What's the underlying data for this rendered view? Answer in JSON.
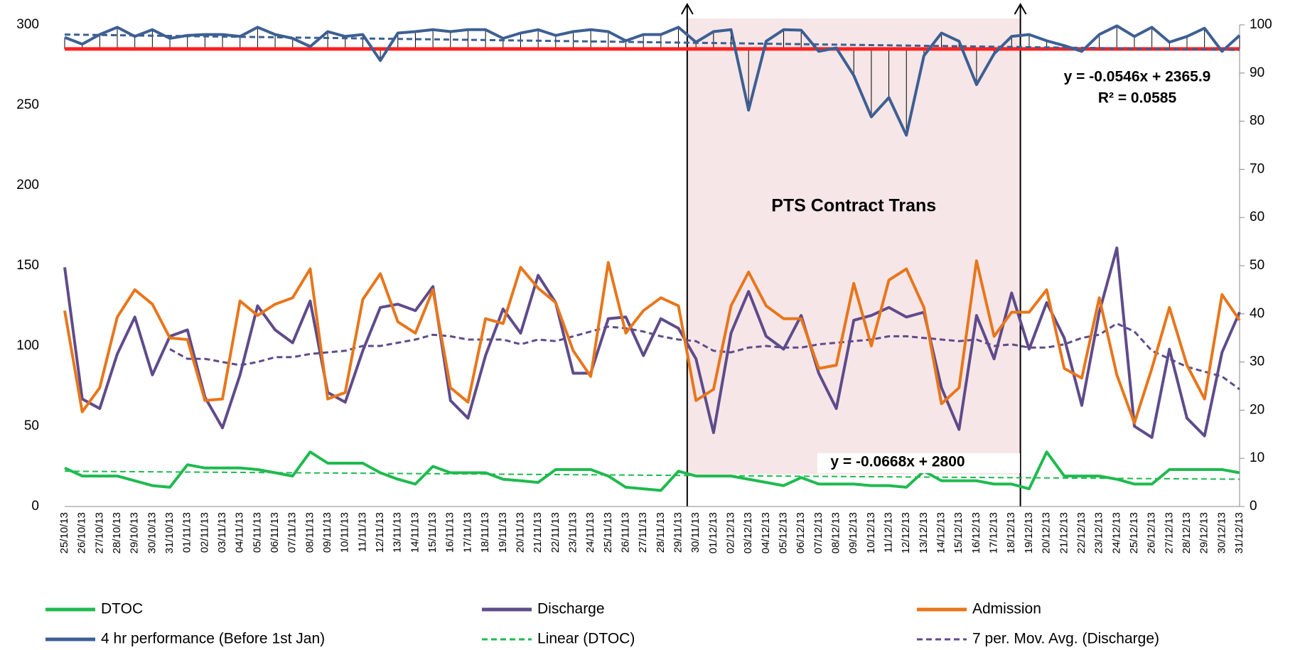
{
  "chart_data": {
    "type": "line",
    "categories": [
      "25/10/13",
      "26/10/13",
      "27/10/13",
      "28/10/13",
      "29/10/13",
      "30/10/13",
      "31/10/13",
      "01/11/13",
      "02/11/13",
      "03/11/13",
      "04/11/13",
      "05/11/13",
      "06/11/13",
      "07/11/13",
      "08/11/13",
      "09/11/13",
      "10/11/13",
      "11/11/13",
      "12/11/13",
      "13/11/13",
      "14/11/13",
      "15/11/13",
      "16/11/13",
      "17/11/13",
      "18/11/13",
      "19/11/13",
      "20/11/13",
      "21/11/13",
      "22/11/13",
      "23/11/13",
      "24/11/13",
      "25/11/13",
      "26/11/13",
      "27/11/13",
      "28/11/13",
      "29/11/13",
      "30/11/13",
      "01/12/13",
      "02/12/13",
      "03/12/13",
      "04/12/13",
      "05/12/13",
      "06/12/13",
      "07/12/13",
      "08/12/13",
      "09/12/13",
      "10/12/13",
      "11/12/13",
      "12/12/13",
      "13/12/13",
      "14/12/13",
      "15/12/13",
      "16/12/13",
      "17/12/13",
      "18/12/13",
      "19/12/13",
      "20/12/13",
      "21/12/13",
      "22/12/13",
      "23/12/13",
      "24/12/13",
      "25/12/13",
      "26/12/13",
      "27/12/13",
      "28/12/13",
      "29/12/13",
      "30/12/13",
      "31/12/13"
    ],
    "series": [
      {
        "name": "DTOC",
        "color": "#1fba4f",
        "width": 4,
        "values": [
          24,
          19,
          19,
          19,
          16,
          13,
          12,
          26,
          24,
          24,
          24,
          23,
          21,
          19,
          34,
          27,
          27,
          27,
          21,
          17,
          14,
          25,
          21,
          21,
          21,
          17,
          16,
          15,
          23,
          23,
          23,
          19,
          12,
          11,
          10,
          22,
          19,
          19,
          19,
          17,
          15,
          13,
          18,
          14,
          14,
          14,
          13,
          13,
          12,
          22,
          16,
          16,
          16,
          14,
          14,
          11,
          34,
          19,
          19,
          19,
          17,
          14,
          14,
          23,
          23,
          23,
          23,
          21
        ]
      },
      {
        "name": "Discharge",
        "color": "#5f4b8b",
        "width": 4,
        "values": [
          149,
          67,
          61,
          95,
          118,
          82,
          106,
          110,
          68,
          49,
          82,
          125,
          110,
          102,
          128,
          71,
          65,
          97,
          124,
          126,
          122,
          137,
          66,
          55,
          94,
          123,
          108,
          144,
          127,
          83,
          83,
          117,
          118,
          94,
          117,
          111,
          92,
          46,
          108,
          134,
          106,
          98,
          119,
          83,
          61,
          116,
          119,
          124,
          118,
          121,
          74,
          48,
          119,
          92,
          133,
          98,
          127,
          105,
          63,
          121,
          161,
          50,
          43,
          98,
          55,
          44,
          96,
          121
        ]
      },
      {
        "name": "Admission",
        "color": "#e8761b",
        "width": 4,
        "values": [
          122,
          59,
          74,
          118,
          135,
          126,
          105,
          104,
          66,
          67,
          128,
          119,
          126,
          130,
          148,
          67,
          71,
          129,
          145,
          115,
          108,
          135,
          74,
          65,
          117,
          114,
          149,
          136,
          127,
          97,
          81,
          152,
          108,
          122,
          130,
          125,
          66,
          73,
          125,
          146,
          125,
          117,
          117,
          86,
          88,
          139,
          100,
          141,
          148,
          124,
          64,
          74,
          153,
          106,
          121,
          121,
          135,
          86,
          80,
          130,
          82,
          52,
          86,
          124,
          88,
          67,
          132,
          116
        ]
      },
      {
        "name": "4 hr performance (Before 1st Jan)",
        "color": "#3d5f93",
        "width": 4,
        "axis": "y2",
        "values": [
          97.4,
          96,
          98,
          99.5,
          97.6,
          99,
          97.2,
          97.8,
          98,
          98,
          97.6,
          99.5,
          98,
          97.2,
          95.5,
          98.6,
          97.6,
          98,
          92.6,
          98.3,
          98.6,
          99,
          98.6,
          99,
          99,
          97.2,
          98.3,
          99,
          97.8,
          98.6,
          99,
          98.6,
          96.7,
          98,
          98,
          99.5,
          96.4,
          98.6,
          99,
          82.3,
          96.6,
          99,
          98.9,
          94.5,
          95.2,
          89.5,
          80.9,
          84.9,
          77.1,
          93.6,
          98.3,
          96.6,
          87.6,
          94,
          97.6,
          98,
          96.7,
          95.7,
          94.5,
          98,
          99.8,
          97.6,
          99.5,
          96.4,
          97.6,
          99.3,
          94.5,
          97.8
        ]
      },
      {
        "name": "Linear (DTOC)",
        "color": "#1fba4f",
        "width": 2,
        "dash": true,
        "x": [
          "25/10/13",
          "31/12/13"
        ],
        "values": [
          22,
          17
        ]
      },
      {
        "name": "7 per. Mov. Avg. (Discharge)",
        "color": "#5f4b8b",
        "width": 3,
        "dash": true,
        "values": [
          null,
          null,
          null,
          null,
          null,
          null,
          98,
          92,
          92,
          90,
          88,
          90,
          93,
          93,
          95,
          96,
          97,
          100,
          100,
          102,
          104,
          107,
          106,
          104,
          104,
          104,
          101,
          104,
          103,
          106,
          109,
          112,
          111,
          109,
          106,
          104,
          103,
          97,
          96,
          99,
          100,
          99,
          99,
          101,
          102,
          103,
          104,
          106,
          106,
          105,
          104,
          103,
          104,
          100,
          101,
          99,
          99,
          101,
          105,
          107,
          114,
          109,
          97,
          92,
          87,
          84,
          81,
          73
        ]
      },
      {
        "color": "#3d5f93",
        "width": 3,
        "dash": true,
        "axis": "y2",
        "x": [
          "25/10/13",
          "31/12/13"
        ],
        "values": [
          98,
          94.8
        ]
      },
      {
        "color": "#ff2020",
        "width": 5,
        "axis": "y2",
        "x": [
          "25/10/13",
          "31/12/13"
        ],
        "values": [
          95,
          95
        ]
      }
    ],
    "drop_lines": {
      "series": 3,
      "to": 95,
      "color": "#000"
    },
    "highlight": {
      "from": "29/11/13",
      "to": "18/12/13",
      "color": "#f6e6e7",
      "label": "PTS Contract Trans"
    },
    "annotations": {
      "trend_4hr": "y = -0.0546x + 2365.9",
      "r2_4hr": "R² = 0.0585",
      "trend_dtoc": "y = -0.0668x + 2800"
    },
    "annotation_colors": {
      "trend_4hr": "#5b8fd0",
      "trend_dtoc": "#7a7a3a"
    },
    "ylim": [
      0,
      300
    ],
    "yticks": [
      0,
      50,
      100,
      150,
      200,
      250,
      300
    ],
    "y2lim": [
      0,
      100
    ],
    "y2ticks": [
      0,
      10,
      20,
      30,
      40,
      50,
      60,
      70,
      80,
      90,
      100
    ],
    "legend": "bottom"
  }
}
